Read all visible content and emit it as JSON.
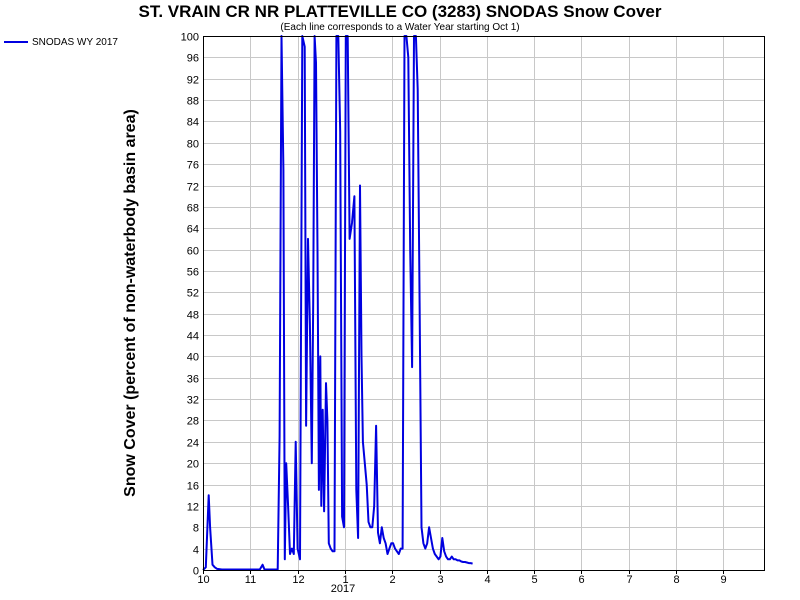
{
  "chart_data": {
    "type": "line",
    "title": "ST. VRAIN CR NR PLATTEVILLE CO (3283) SNODAS Snow Cover",
    "subtitle": "(Each line corresponds to a Water Year starting Oct 1)",
    "ylabel": "Snow Cover (percent of non-waterbody basin area)",
    "xlabel": "",
    "x_ticks": [
      "10",
      "11",
      "12",
      "1",
      "2",
      "3",
      "4",
      "5",
      "6",
      "7",
      "8",
      "9"
    ],
    "x_year_label": "2017",
    "x_tick_positions_month": [
      0,
      1,
      2,
      3,
      4,
      5,
      6,
      7,
      8,
      9,
      10,
      11
    ],
    "xlim_month": [
      0,
      11.8
    ],
    "ylim": [
      0,
      100
    ],
    "y_ticks": [
      0,
      4,
      8,
      12,
      16,
      20,
      24,
      28,
      32,
      36,
      40,
      44,
      48,
      52,
      56,
      60,
      64,
      68,
      72,
      76,
      80,
      84,
      88,
      92,
      96,
      100
    ],
    "grid": true,
    "legend_position": "top-left outside",
    "series": [
      {
        "name": "SNODAS WY 2017",
        "color": "#0000e0",
        "x_month": [
          0.0,
          0.06,
          0.12,
          0.15,
          0.2,
          0.25,
          0.3,
          0.4,
          0.6,
          0.9,
          1.1,
          1.2,
          1.26,
          1.3,
          1.5,
          1.58,
          1.62,
          1.66,
          1.7,
          1.73,
          1.76,
          1.8,
          1.84,
          1.88,
          1.92,
          1.96,
          2.0,
          2.05,
          2.1,
          2.15,
          2.18,
          2.22,
          2.26,
          2.3,
          2.33,
          2.36,
          2.39,
          2.42,
          2.45,
          2.48,
          2.5,
          2.53,
          2.56,
          2.6,
          2.63,
          2.66,
          2.7,
          2.74,
          2.78,
          2.82,
          2.86,
          2.9,
          2.94,
          2.98,
          3.02,
          3.06,
          3.1,
          3.15,
          3.2,
          3.24,
          3.28,
          3.32,
          3.35,
          3.38,
          3.42,
          3.46,
          3.5,
          3.54,
          3.58,
          3.62,
          3.66,
          3.7,
          3.74,
          3.78,
          3.82,
          3.86,
          3.9,
          3.94,
          3.98,
          4.02,
          4.06,
          4.1,
          4.14,
          4.18,
          4.22,
          4.26,
          4.3,
          4.34,
          4.38,
          4.42,
          4.46,
          4.5,
          4.54,
          4.58,
          4.62,
          4.66,
          4.7,
          4.74,
          4.78,
          4.82,
          4.86,
          4.9,
          4.94,
          4.98,
          5.02,
          5.06,
          5.1,
          5.14,
          5.18,
          5.22,
          5.26,
          5.3,
          5.34,
          5.38,
          5.42,
          5.46,
          5.5,
          5.54,
          5.58,
          5.62,
          5.66,
          5.7
        ],
        "y": [
          0,
          0.5,
          14,
          8,
          1,
          0.5,
          0.2,
          0.1,
          0.1,
          0.1,
          0.1,
          0.1,
          1,
          0.1,
          0.1,
          0.1,
          25,
          100,
          75,
          2,
          20,
          12,
          3,
          4,
          3,
          24,
          4,
          2,
          100,
          98,
          27,
          62,
          46,
          20,
          50,
          100,
          95,
          60,
          15,
          40,
          12,
          30,
          11,
          35,
          28,
          5,
          4,
          3.5,
          3.5,
          100,
          100,
          82,
          10,
          8,
          100,
          100,
          62,
          65,
          70,
          15,
          6,
          72,
          40,
          24,
          20,
          16,
          9,
          8,
          8,
          12,
          27,
          7,
          5,
          8,
          6,
          5,
          3,
          4,
          5,
          5,
          4,
          3.5,
          3,
          4,
          4,
          100,
          100,
          96,
          60,
          38,
          100,
          100,
          90,
          50,
          8,
          5,
          4,
          5,
          8,
          6,
          4,
          3,
          2.5,
          2,
          2.5,
          6,
          3.5,
          2.5,
          2,
          2,
          2.5,
          2,
          2,
          1.8,
          1.8,
          1.6,
          1.5,
          1.5,
          1.4,
          1.3,
          1.3,
          1.2
        ]
      }
    ]
  }
}
